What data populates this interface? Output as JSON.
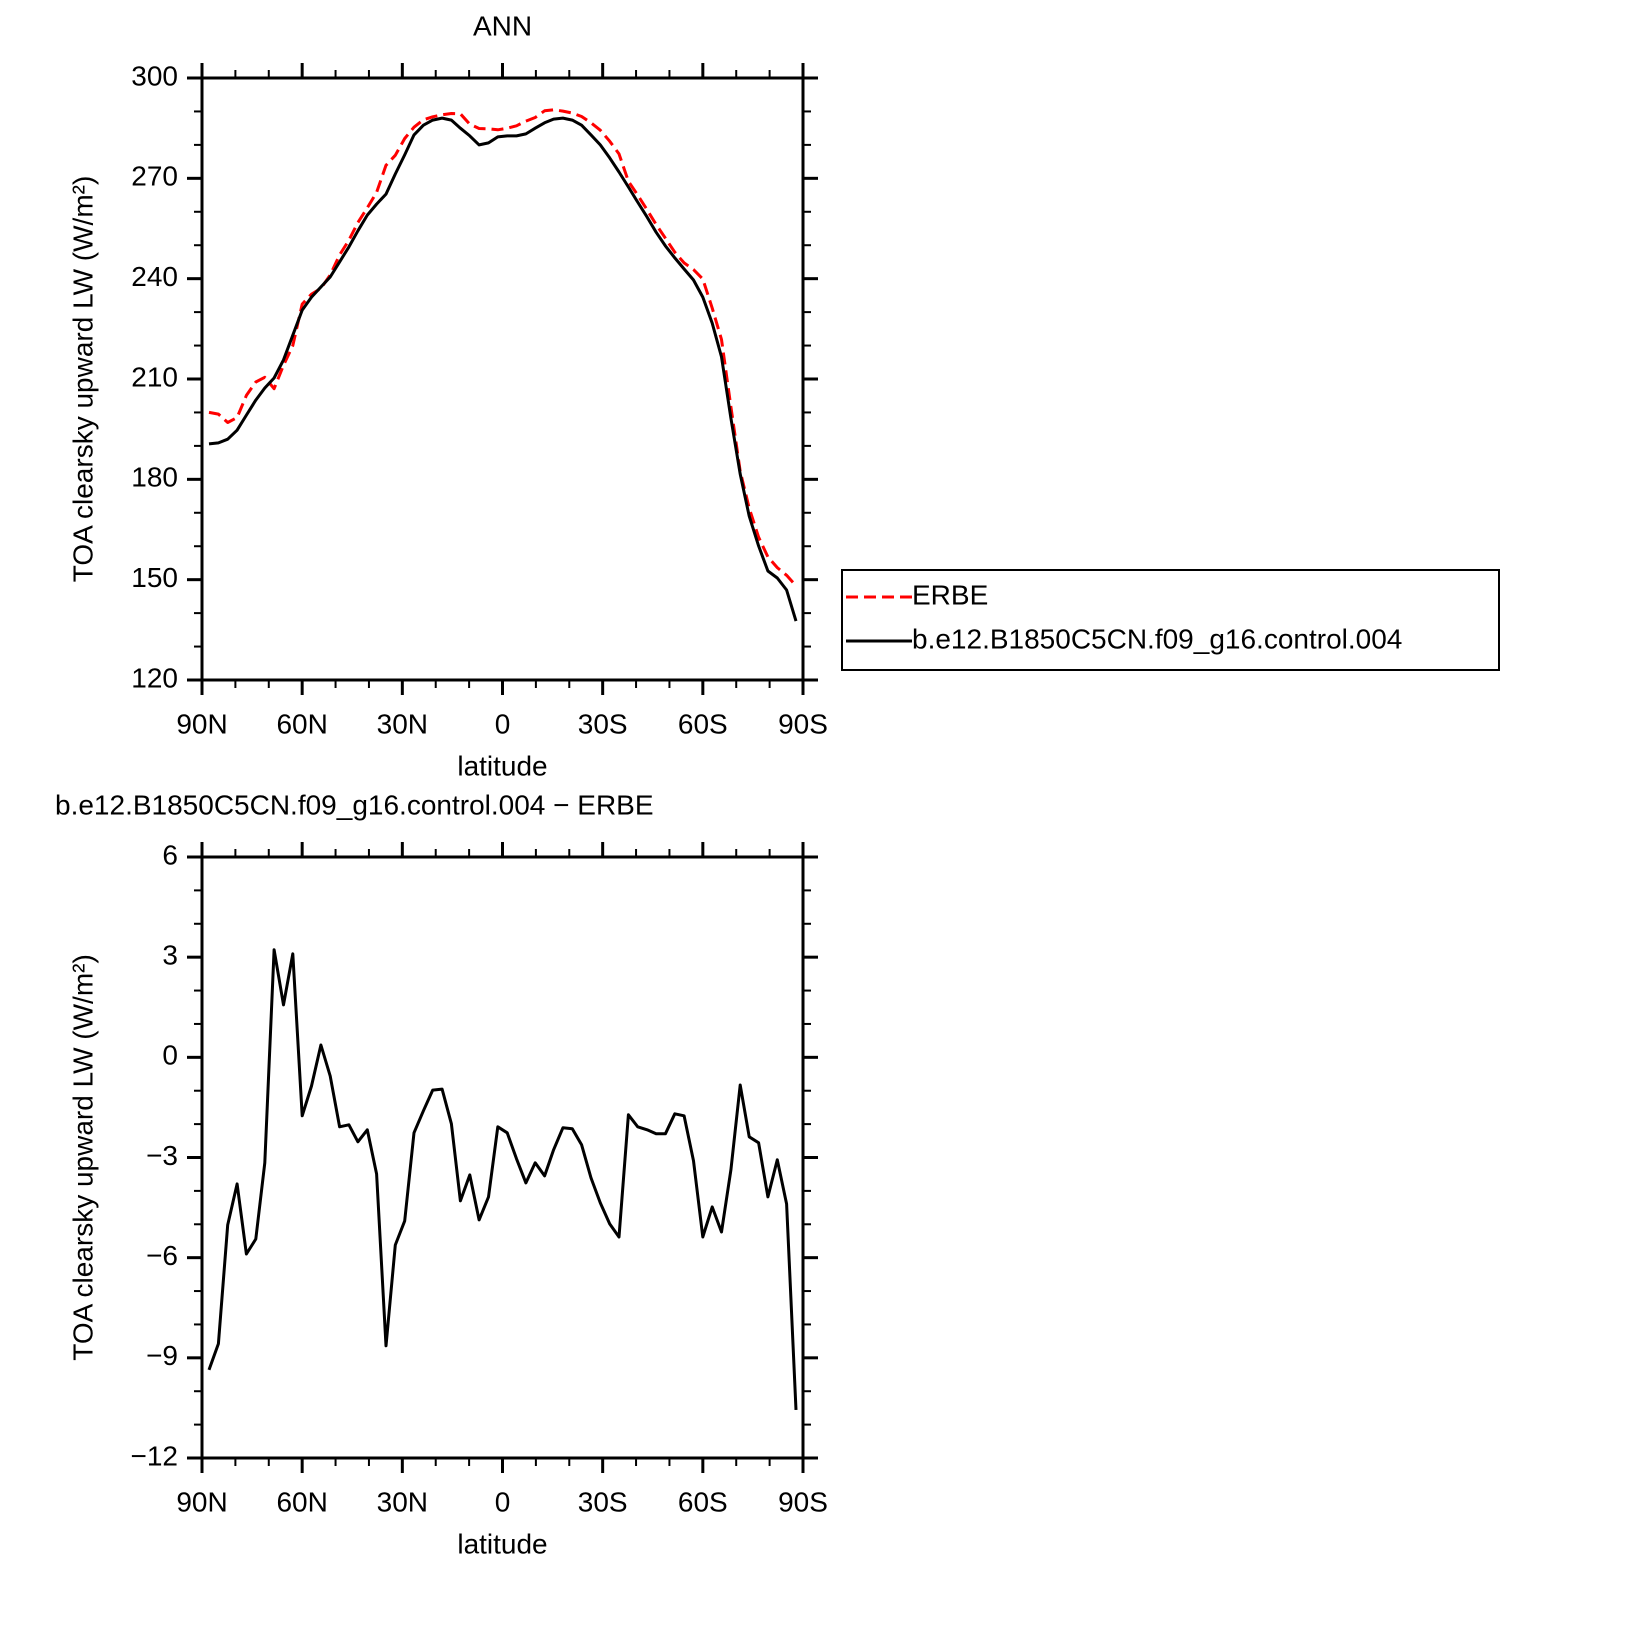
{
  "chart_data": [
    {
      "type": "line",
      "title": "ANN",
      "xlabel": "latitude",
      "ylabel": "TOA clearsky upward LW (W/m²)",
      "x": [
        87.9,
        85.1,
        82.3,
        79.5,
        76.7,
        73.9,
        71.2,
        68.4,
        65.6,
        62.8,
        60.0,
        57.2,
        54.4,
        51.6,
        48.8,
        46.0,
        43.3,
        40.5,
        37.7,
        34.9,
        32.1,
        29.3,
        26.5,
        23.7,
        20.9,
        18.1,
        15.3,
        12.6,
        9.8,
        7.0,
        4.2,
        1.4,
        -1.4,
        -4.2,
        -7.0,
        -9.8,
        -12.6,
        -15.3,
        -18.1,
        -20.9,
        -23.7,
        -26.5,
        -29.3,
        -32.1,
        -34.9,
        -37.7,
        -40.5,
        -43.3,
        -46.0,
        -48.8,
        -51.6,
        -54.4,
        -57.2,
        -60.0,
        -62.8,
        -65.6,
        -68.4,
        -71.2,
        -73.9,
        -76.7,
        -79.5,
        -82.3,
        -85.1,
        -87.9
      ],
      "series": [
        {
          "name": "ERBE",
          "color": "#ff0000",
          "dash": true,
          "values": [
            200.0,
            199.5,
            197.0,
            198.5,
            205.1,
            209.1,
            210.5,
            207.1,
            214.1,
            220.0,
            232.4,
            235.4,
            237.1,
            241.1,
            247.1,
            251.5,
            256.8,
            261.2,
            265.8,
            273.9,
            276.9,
            281.9,
            285.3,
            287.5,
            288.4,
            289.0,
            289.4,
            289.3,
            286.2,
            284.9,
            284.8,
            284.5,
            285.0,
            285.7,
            287.1,
            288.2,
            290.2,
            290.5,
            290.1,
            289.5,
            288.5,
            286.6,
            284.4,
            281.1,
            277.3,
            269.1,
            265.0,
            260.6,
            256.2,
            252.1,
            247.9,
            244.7,
            242.7,
            239.9,
            231.2,
            221.8,
            201.7,
            182.4,
            171.4,
            162.7,
            156.8,
            153.6,
            151.3,
            148.2
          ]
        },
        {
          "name": "b.e12.B1850C5CN.f09_g16.control.004",
          "color": "#000000",
          "dash": false,
          "values": [
            190.6,
            190.9,
            192.0,
            194.7,
            199.2,
            203.7,
            207.3,
            210.3,
            215.7,
            223.1,
            230.6,
            234.5,
            237.5,
            240.5,
            245.0,
            249.5,
            254.3,
            259.0,
            262.3,
            265.3,
            271.3,
            277.0,
            283.0,
            285.9,
            287.4,
            288.0,
            287.4,
            285.0,
            282.7,
            280.0,
            280.6,
            282.4,
            282.7,
            282.7,
            283.3,
            285.0,
            286.6,
            287.7,
            288.0,
            287.4,
            285.9,
            283.0,
            280.0,
            276.1,
            271.9,
            267.4,
            262.9,
            258.4,
            253.9,
            249.8,
            246.2,
            242.9,
            239.6,
            234.5,
            226.7,
            216.6,
            198.3,
            181.6,
            169.0,
            160.1,
            152.6,
            150.5,
            146.9,
            137.6
          ]
        }
      ],
      "xlim": [
        90,
        -90
      ],
      "xticks": [
        {
          "value": 90,
          "label": "90N"
        },
        {
          "value": 60,
          "label": "60N"
        },
        {
          "value": 30,
          "label": "30N"
        },
        0,
        {
          "value": -30,
          "label": "30S"
        },
        {
          "value": -60,
          "label": "60S"
        },
        {
          "value": -90,
          "label": "90S"
        }
      ],
      "x_minor_ticks": [
        80,
        70,
        50,
        40,
        20,
        10,
        -10,
        -20,
        -40,
        -50,
        -70,
        -80
      ],
      "ylim": [
        120,
        300
      ],
      "yticks": [
        120,
        150,
        180,
        210,
        240,
        270,
        300
      ],
      "y_minor_ticks": [
        130,
        140,
        160,
        170,
        190,
        200,
        220,
        230,
        250,
        260,
        280,
        290
      ],
      "legend": "outside-right"
    },
    {
      "type": "line",
      "title": "b.e12.B1850C5CN.f09_g16.control.004 − ERBE",
      "xlabel": "latitude",
      "ylabel": "TOA clearsky upward LW (W/m²)",
      "x": [
        87.9,
        85.1,
        82.3,
        79.5,
        76.7,
        73.9,
        71.2,
        68.4,
        65.6,
        62.8,
        60.0,
        57.2,
        54.4,
        51.6,
        48.8,
        46.0,
        43.3,
        40.5,
        37.7,
        34.9,
        32.1,
        29.3,
        26.5,
        23.7,
        20.9,
        18.1,
        15.3,
        12.6,
        9.8,
        7.0,
        4.2,
        1.4,
        -1.4,
        -4.2,
        -7.0,
        -9.8,
        -12.6,
        -15.3,
        -18.1,
        -20.9,
        -23.7,
        -26.5,
        -29.3,
        -32.1,
        -34.9,
        -37.7,
        -40.5,
        -43.3,
        -46.0,
        -48.8,
        -51.6,
        -54.4,
        -57.2,
        -60.0,
        -62.8,
        -65.6,
        -68.4,
        -71.2,
        -73.9,
        -76.7,
        -79.5,
        -82.3,
        -85.1,
        -87.9
      ],
      "series": [
        {
          "color": "#000000",
          "dash": false,
          "values": [
            -9.36,
            -8.58,
            -5.02,
            -3.79,
            -5.89,
            -5.44,
            -3.16,
            3.22,
            1.57,
            3.1,
            -1.75,
            -0.86,
            0.37,
            -0.56,
            -2.08,
            -2.02,
            -2.53,
            -2.17,
            -3.49,
            -8.64,
            -5.62,
            -4.9,
            -2.26,
            -1.6,
            -0.98,
            -0.95,
            -1.99,
            -4.3,
            -3.52,
            -4.87,
            -4.18,
            -2.08,
            -2.26,
            -3.04,
            -3.76,
            -3.16,
            -3.55,
            -2.77,
            -2.11,
            -2.14,
            -2.62,
            -3.61,
            -4.36,
            -4.99,
            -5.38,
            -1.72,
            -2.08,
            -2.17,
            -2.29,
            -2.29,
            -1.69,
            -1.75,
            -3.1,
            -5.38,
            -4.48,
            -5.23,
            -3.37,
            -0.83,
            -2.38,
            -2.56,
            -4.18,
            -3.07,
            -4.39,
            -10.56
          ]
        }
      ],
      "xlim": [
        90,
        -90
      ],
      "xticks": [
        {
          "value": 90,
          "label": "90N"
        },
        {
          "value": 60,
          "label": "60N"
        },
        {
          "value": 30,
          "label": "30N"
        },
        0,
        {
          "value": -30,
          "label": "30S"
        },
        {
          "value": -60,
          "label": "60S"
        },
        {
          "value": -90,
          "label": "90S"
        }
      ],
      "x_minor_ticks": [
        80,
        70,
        50,
        40,
        20,
        10,
        -10,
        -20,
        -40,
        -50,
        -70,
        -80
      ],
      "ylim": [
        -12,
        6
      ],
      "yticks": [
        {
          "value": -12,
          "label": "−12"
        },
        {
          "value": -9,
          "label": "−9"
        },
        {
          "value": -6,
          "label": "−6"
        },
        {
          "value": -3,
          "label": "−3"
        },
        0,
        3,
        6
      ],
      "y_minor_ticks": [
        -11,
        -10,
        -8,
        -7,
        -5,
        -4,
        -2,
        -1,
        1,
        2,
        4,
        5
      ]
    }
  ]
}
